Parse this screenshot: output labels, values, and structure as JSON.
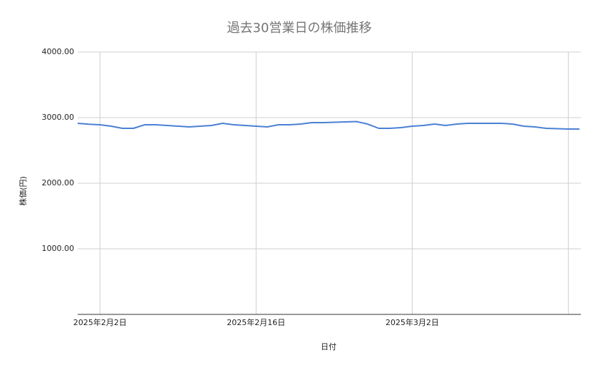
{
  "chart_data": {
    "type": "line",
    "title": "過去30営業日の株価推移",
    "x_label": "日付",
    "y_label": "株価(円)",
    "x": [
      "2025-01-31",
      "2025-02-01",
      "2025-02-02",
      "2025-02-03",
      "2025-02-04",
      "2025-02-05",
      "2025-02-06",
      "2025-02-07",
      "2025-02-08",
      "2025-02-09",
      "2025-02-10",
      "2025-02-11",
      "2025-02-12",
      "2025-02-13",
      "2025-02-14",
      "2025-02-15",
      "2025-02-16",
      "2025-02-17",
      "2025-02-18",
      "2025-02-19",
      "2025-02-20",
      "2025-02-21",
      "2025-02-22",
      "2025-02-23",
      "2025-02-24",
      "2025-02-25",
      "2025-02-26",
      "2025-02-27",
      "2025-02-28",
      "2025-03-01",
      "2025-03-02",
      "2025-03-03",
      "2025-03-04",
      "2025-03-05",
      "2025-03-06",
      "2025-03-07",
      "2025-03-08",
      "2025-03-09",
      "2025-03-10",
      "2025-03-11",
      "2025-03-12",
      "2025-03-13",
      "2025-03-14",
      "2025-03-15",
      "2025-03-16",
      "2025-03-17"
    ],
    "series": [
      {
        "name": "株価",
        "color": "#4a80d3",
        "values": [
          2913,
          2900,
          2891,
          2870,
          2837,
          2837,
          2891,
          2891,
          2880,
          2870,
          2859,
          2870,
          2880,
          2913,
          2891,
          2880,
          2870,
          2859,
          2891,
          2891,
          2902,
          2924,
          2924,
          2930,
          2935,
          2940,
          2902,
          2837,
          2837,
          2848,
          2870,
          2880,
          2902,
          2880,
          2902,
          2913,
          2913,
          2913,
          2913,
          2902,
          2870,
          2859,
          2837,
          2832,
          2826,
          2826
        ]
      }
    ],
    "xlim": [
      "2025-01-31",
      "2025-03-17"
    ],
    "xticks": [
      {
        "value": "2025-02-02",
        "label": "2025年2月2日"
      },
      {
        "value": "2025-02-16",
        "label": "2025年2月16日"
      },
      {
        "value": "2025-03-02",
        "label": "2025年3月2日"
      },
      {
        "value": "2025-03-16",
        "label": null
      }
    ],
    "ylim": [
      0,
      4000
    ],
    "yticks": [
      {
        "value": 1000,
        "label": "1000.00"
      },
      {
        "value": 2000,
        "label": "2000.00"
      },
      {
        "value": 3000,
        "label": "3000.00"
      },
      {
        "value": 4000,
        "label": "4000.00"
      }
    ],
    "grid": true
  }
}
